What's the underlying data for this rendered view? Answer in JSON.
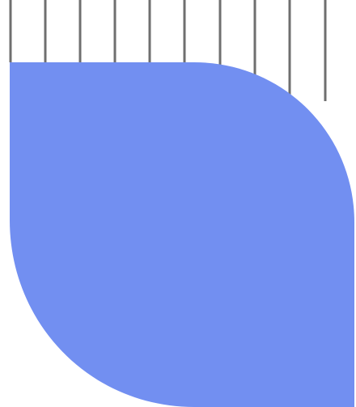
{
  "colors": {
    "background": "#ffffff",
    "leaf_shape": "#728ff1",
    "lines": "#6f6f6f"
  },
  "graphic": {
    "elements": [
      "vertical-lines",
      "leaf-shape"
    ],
    "line_count": 10
  }
}
